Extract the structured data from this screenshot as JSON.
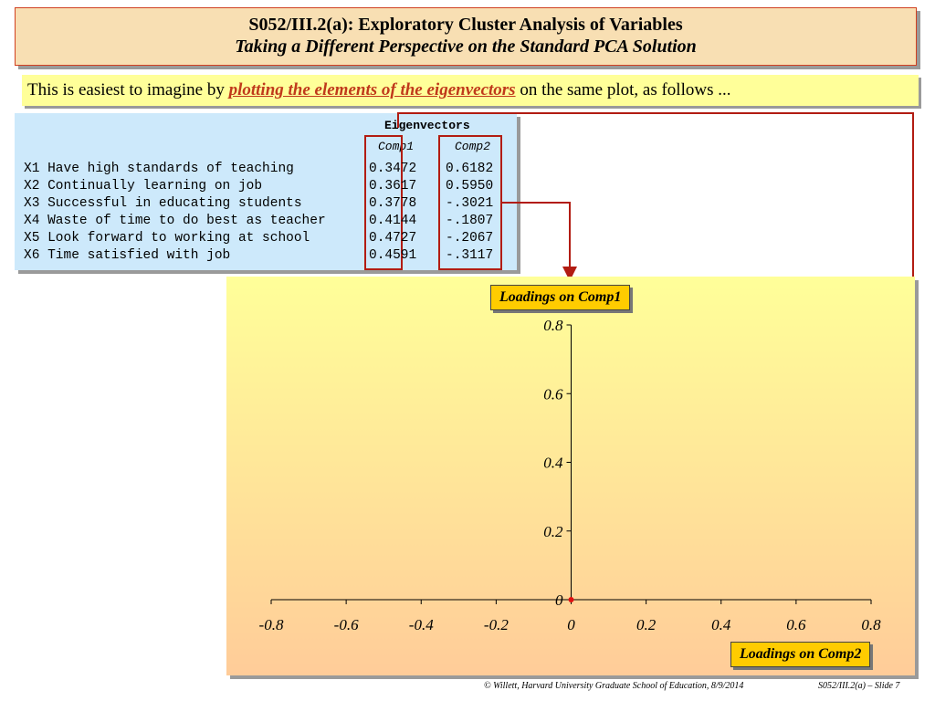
{
  "title": {
    "line1": "S052/III.2(a): Exploratory Cluster Analysis of Variables",
    "line2": "Taking a Different Perspective on the Standard PCA Solution"
  },
  "intro": {
    "pre": "This is easiest to imagine by ",
    "emphasis": "plotting the elements of the eigenvectors",
    "post": " on the same plot, as follows ..."
  },
  "table": {
    "heading": "Eigenvectors",
    "columns": [
      "Comp1",
      "Comp2"
    ],
    "rows": [
      {
        "label": "X1 Have high standards of teaching",
        "comp1": "0.3472",
        "comp2": "0.6182"
      },
      {
        "label": "X2 Continually learning on job",
        "comp1": "0.3617",
        "comp2": "0.5950"
      },
      {
        "label": "X3 Successful in educating students",
        "comp1": "0.3778",
        "comp2": "-.3021"
      },
      {
        "label": "X4 Waste of time to do best as teacher",
        "comp1": "0.4144",
        "comp2": "-.1807"
      },
      {
        "label": "X5 Look forward to working at school",
        "comp1": "0.4727",
        "comp2": "-.2067"
      },
      {
        "label": "X6 Time satisfied with job",
        "comp1": "0.4591",
        "comp2": "-.3117"
      }
    ]
  },
  "chart_data": {
    "type": "scatter",
    "title": "",
    "xlabel": "Loadings on Comp2",
    "ylabel": "Loadings on Comp1",
    "xlim": [
      -0.8,
      0.8
    ],
    "ylim": [
      0,
      0.8
    ],
    "x_ticks": [
      "-0.8",
      "-0.6",
      "-0.4",
      "-0.2",
      "0",
      "0.2",
      "0.4",
      "0.6",
      "0.8"
    ],
    "y_ticks": [
      "0",
      "0.2",
      "0.4",
      "0.6",
      "0.8"
    ],
    "series": [
      {
        "points": [
          {
            "x": 0,
            "y": 0
          }
        ]
      }
    ],
    "grid": false
  },
  "colors": {
    "accent": "#b21c12",
    "label_fill": "#ffcc00"
  },
  "footer": {
    "left": "© Willett, Harvard University Graduate School of Education, 8/9/2014",
    "right": "S052/III.2(a) – Slide 7"
  }
}
